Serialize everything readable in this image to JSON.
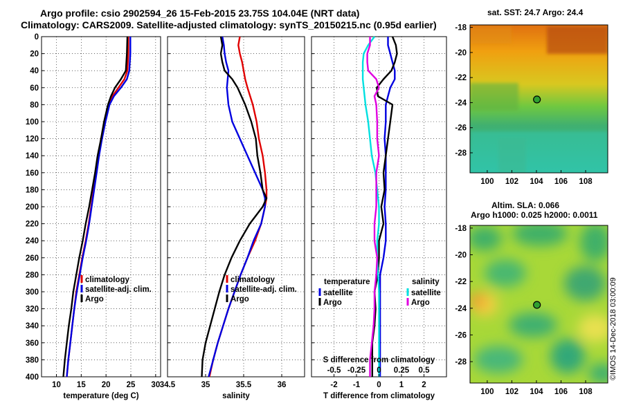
{
  "header": {
    "title_line1": "Argo profile: csio 2902594_26 15-Feb-2015 23.75S 104.04E (NRT data)",
    "title_line2": "Climatology: CARS2009. Satellite-adjusted climatology: synTS_20150215.nc (0.95d earlier)"
  },
  "maps": {
    "sst_title": "sat. SST: 24.7 Argo: 24.4",
    "sla_title": "Altim. SLA: 0.066",
    "sla_subtitle": "Argo h1000: 0.025 h2000: 0.0011",
    "lat_ticks": [
      "-18",
      "-20",
      "-22",
      "-24",
      "-26",
      "-28"
    ],
    "lon_ticks": [
      "100",
      "102",
      "104",
      "106",
      "108"
    ],
    "marker": {
      "lon": 104.04,
      "lat": -23.75
    }
  },
  "credit": "©IMOS 14-Dec-2018 03:00:09",
  "colors": {
    "climatology": "#e00000",
    "satellite": "#0000e0",
    "argo": "#000000",
    "sal_satellite": "#00e0e0",
    "sal_argo": "#e000e0"
  },
  "chart_data": [
    {
      "id": "temperature",
      "type": "line",
      "xlabel": "temperature (deg C)",
      "ylabel": "",
      "xlim": [
        7,
        31
      ],
      "ylim": [
        400,
        0
      ],
      "xticks": [
        "10",
        "15",
        "20",
        "25",
        "30"
      ],
      "yticks": [
        "0",
        "20",
        "40",
        "60",
        "80",
        "100",
        "120",
        "140",
        "160",
        "180",
        "200",
        "220",
        "240",
        "260",
        "280",
        "300",
        "320",
        "340",
        "360",
        "380",
        "400"
      ],
      "legend": [
        "climatology",
        "satellite-adj. clim.",
        "Argo"
      ],
      "legend_position": "lower-right",
      "depth": [
        0,
        20,
        40,
        50,
        60,
        70,
        80,
        100,
        120,
        140,
        160,
        180,
        200,
        220,
        240,
        260,
        280,
        300,
        320,
        340,
        360,
        380,
        400
      ],
      "series": [
        {
          "name": "climatology",
          "color": "#e00000",
          "values": [
            24.5,
            24.5,
            24.3,
            23.7,
            22.5,
            21.3,
            20.5,
            19.7,
            19.0,
            18.5,
            18.0,
            17.5,
            17.0,
            16.5,
            15.9,
            15.2,
            14.6,
            14.0,
            13.6,
            13.2,
            12.8,
            12.4,
            12.1
          ]
        },
        {
          "name": "satellite-adj. clim.",
          "color": "#0000e0",
          "values": [
            24.9,
            24.9,
            24.7,
            24.2,
            23.0,
            21.6,
            20.7,
            19.9,
            19.2,
            18.6,
            18.1,
            17.6,
            17.1,
            16.6,
            16.0,
            15.3,
            14.7,
            14.1,
            13.6,
            13.2,
            12.8,
            12.4,
            12.1
          ]
        },
        {
          "name": "Argo",
          "color": "#000000",
          "values": [
            24.3,
            24.2,
            24.0,
            23.0,
            21.8,
            21.0,
            20.4,
            19.6,
            19.0,
            18.3,
            17.8,
            17.2,
            16.6,
            15.9,
            15.3,
            14.6,
            14.0,
            13.4,
            13.0,
            12.5,
            12.1,
            11.7,
            11.4
          ]
        }
      ]
    },
    {
      "id": "salinity",
      "type": "line",
      "xlabel": "salinity",
      "ylabel": "",
      "xlim": [
        34.5,
        36.3
      ],
      "ylim": [
        400,
        0
      ],
      "xticks": [
        "34.5",
        "35",
        "35.5",
        "36"
      ],
      "yticks": [],
      "legend": [
        "climatology",
        "satellite-adj. clim.",
        "Argo"
      ],
      "legend_position": "lower-right",
      "depth": [
        0,
        10,
        20,
        30,
        40,
        50,
        60,
        80,
        100,
        120,
        140,
        160,
        180,
        190,
        200,
        220,
        240,
        260,
        280,
        300,
        320,
        340,
        360,
        380,
        400
      ],
      "series": [
        {
          "name": "climatology",
          "color": "#e00000",
          "values": [
            35.45,
            35.43,
            35.45,
            35.48,
            35.5,
            35.52,
            35.55,
            35.62,
            35.67,
            35.7,
            35.75,
            35.78,
            35.8,
            35.8,
            35.78,
            35.73,
            35.65,
            35.55,
            35.46,
            35.38,
            35.3,
            35.23,
            35.16,
            35.1,
            35.05
          ]
        },
        {
          "name": "satellite-adj. clim.",
          "color": "#0000e0",
          "values": [
            35.22,
            35.24,
            35.25,
            35.27,
            35.3,
            35.29,
            35.28,
            35.3,
            35.35,
            35.45,
            35.55,
            35.65,
            35.75,
            35.78,
            35.78,
            35.73,
            35.63,
            35.55,
            35.46,
            35.38,
            35.3,
            35.23,
            35.16,
            35.1,
            35.04
          ]
        },
        {
          "name": "Argo",
          "color": "#000000",
          "values": [
            35.2,
            35.22,
            35.2,
            35.22,
            35.25,
            35.35,
            35.42,
            35.52,
            35.6,
            35.66,
            35.68,
            35.72,
            35.75,
            35.8,
            35.75,
            35.58,
            35.45,
            35.34,
            35.25,
            35.18,
            35.12,
            35.06,
            35.0,
            34.96,
            34.95
          ]
        }
      ]
    },
    {
      "id": "difference",
      "type": "line",
      "xlabel": "T difference from climatology",
      "xlabel2": "S difference from climatology",
      "ylabel": "",
      "xlim": [
        -3,
        3
      ],
      "xlim_salinity": [
        -0.75,
        0.75
      ],
      "ylim": [
        400,
        0
      ],
      "xticks": [
        "-2",
        "-1",
        "0",
        "1",
        "2"
      ],
      "xticks_salinity": [
        "-0.5",
        "-0.25",
        "0",
        "0.25",
        "0.5"
      ],
      "yticks": [],
      "legend_temperature": {
        "title": "temperature",
        "items": [
          "satellite",
          "Argo"
        ]
      },
      "legend_salinity": {
        "title": "salinity",
        "items": [
          "satellite",
          "Argo"
        ]
      },
      "legend_position": "lower",
      "depth": [
        0,
        10,
        20,
        30,
        40,
        50,
        60,
        70,
        80,
        100,
        120,
        140,
        160,
        180,
        200,
        220,
        240,
        260,
        280,
        300,
        320,
        340,
        360,
        380,
        400
      ],
      "series": [
        {
          "name": "T satellite",
          "color": "#0000e0",
          "values": [
            0.4,
            0.4,
            0.5,
            0.6,
            0.7,
            0.7,
            0.5,
            0.4,
            0.3,
            0.3,
            0.25,
            0.3,
            0.3,
            0.3,
            0.25,
            0.3,
            0.3,
            0.2,
            0.05,
            0.05,
            0.05,
            0.05,
            0.05,
            0.05,
            0.05
          ]
        },
        {
          "name": "T Argo",
          "color": "#000000",
          "values": [
            0.6,
            0.75,
            0.8,
            0.7,
            0.55,
            0.2,
            -0.1,
            -0.05,
            0.6,
            0.5,
            0.4,
            0.3,
            0.2,
            0.25,
            0.1,
            0.2,
            0.0,
            0.0,
            -0.05,
            -0.2,
            -0.15,
            -0.2,
            -0.3,
            -0.3,
            -0.3
          ]
        },
        {
          "name": "S satellite",
          "color": "#00e0e0",
          "values": [
            -0.05,
            -0.12,
            -0.17,
            -0.18,
            -0.18,
            -0.18,
            -0.17,
            -0.16,
            -0.15,
            -0.12,
            -0.1,
            -0.08,
            -0.04,
            -0.02,
            0.0,
            0.0,
            -0.02,
            -0.02,
            -0.01,
            0.0,
            0.0,
            0.0,
            0.0,
            0.0,
            0.0
          ]
        },
        {
          "name": "S Argo",
          "color": "#e000e0",
          "values": [
            -0.1,
            -0.1,
            -0.13,
            -0.13,
            -0.12,
            -0.03,
            0.0,
            -0.05,
            -0.03,
            -0.02,
            -0.02,
            0.0,
            -0.03,
            -0.03,
            -0.03,
            -0.05,
            -0.05,
            -0.02,
            -0.03,
            -0.05,
            -0.05,
            -0.06,
            -0.08,
            -0.1,
            -0.1
          ]
        }
      ]
    }
  ]
}
